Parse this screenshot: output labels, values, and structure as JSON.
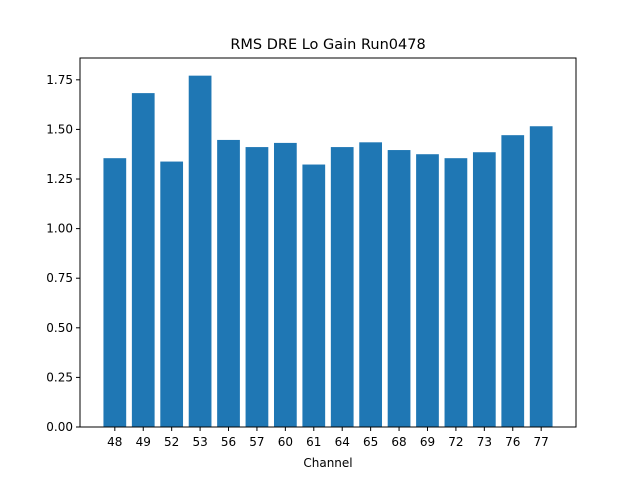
{
  "chart_data": {
    "type": "bar",
    "title": "RMS DRE Lo Gain Run0478",
    "xlabel": "Channel",
    "ylabel": "",
    "categories": [
      "48",
      "49",
      "52",
      "53",
      "56",
      "57",
      "60",
      "61",
      "64",
      "65",
      "68",
      "69",
      "72",
      "73",
      "76",
      "77"
    ],
    "values": [
      1.355,
      1.683,
      1.338,
      1.771,
      1.447,
      1.411,
      1.432,
      1.323,
      1.411,
      1.435,
      1.396,
      1.375,
      1.355,
      1.385,
      1.471,
      1.516
    ],
    "ylim": [
      0,
      1.86
    ],
    "yticks": [
      0,
      0.25,
      0.5,
      0.75,
      1.0,
      1.25,
      1.5,
      1.75
    ],
    "ytick_labels": [
      "0.00",
      "0.25",
      "0.50",
      "0.75",
      "1.00",
      "1.25",
      "1.50",
      "1.75"
    ],
    "bar_color": "#1f77b4",
    "grid": false,
    "legend": "none"
  }
}
